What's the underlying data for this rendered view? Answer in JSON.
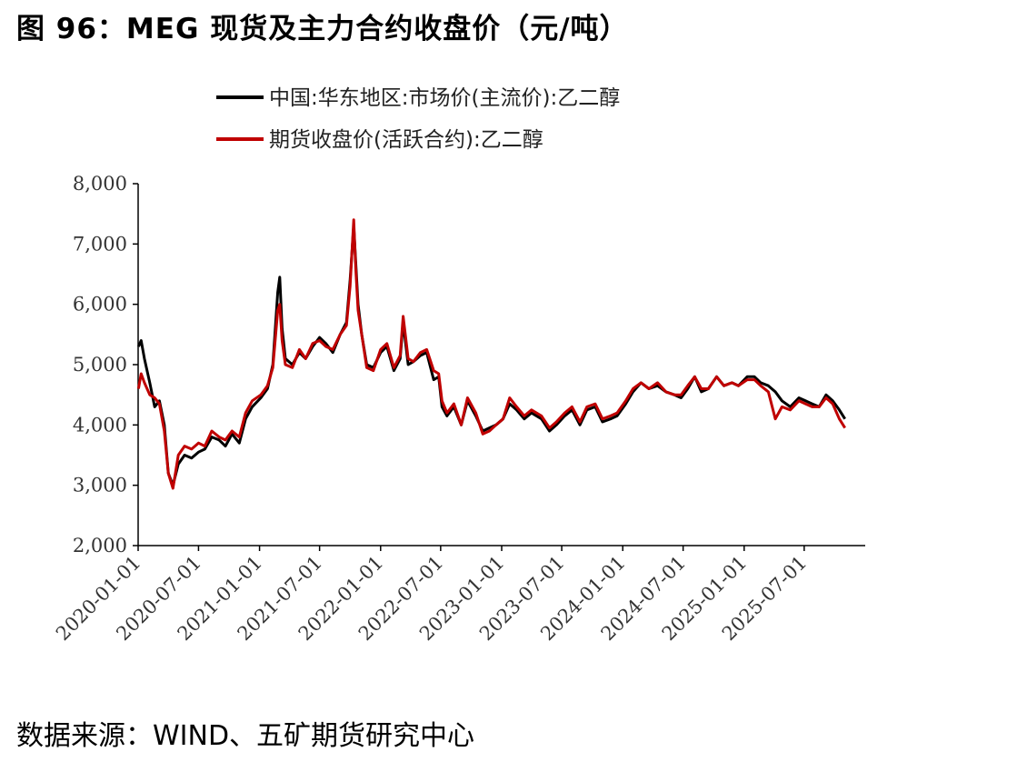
{
  "title": "图 96：MEG 现货及主力合约收盘价（元/吨）",
  "source": "数据来源：WIND、五矿期货研究中心",
  "colors": {
    "spot": "#000000",
    "futures": "#c00000",
    "axis": "#000000"
  },
  "chart_data": {
    "type": "line",
    "title": "图 96：MEG 现货及主力合约收盘价（元/吨）",
    "xlabel": "",
    "ylabel": "",
    "ylim": [
      2000,
      8000
    ],
    "xlim": [
      "2020-01-01",
      "2026-01-01"
    ],
    "yticks": [
      "2,000",
      "3,000",
      "4,000",
      "5,000",
      "6,000",
      "7,000",
      "8,000"
    ],
    "xticks": [
      "2020-01-01",
      "2020-07-01",
      "2021-01-01",
      "2021-07-01",
      "2022-01-01",
      "2022-07-01",
      "2023-01-01",
      "2023-07-01",
      "2024-01-01",
      "2024-07-01",
      "2025-01-01",
      "2025-07-01"
    ],
    "grid": false,
    "legend": "top-center",
    "series": [
      {
        "name": "中国:华东地区:市场价(主流价):乙二醇",
        "color": "#000000",
        "x": [
          "2020-01-02",
          "2020-01-10",
          "2020-01-20",
          "2020-02-05",
          "2020-02-20",
          "2020-03-05",
          "2020-03-20",
          "2020-04-01",
          "2020-04-15",
          "2020-05-01",
          "2020-05-20",
          "2020-06-10",
          "2020-07-01",
          "2020-07-20",
          "2020-08-10",
          "2020-09-01",
          "2020-09-20",
          "2020-10-10",
          "2020-11-01",
          "2020-11-20",
          "2020-12-10",
          "2021-01-05",
          "2021-01-25",
          "2021-02-10",
          "2021-02-25",
          "2021-03-03",
          "2021-03-10",
          "2021-03-20",
          "2021-04-10",
          "2021-05-01",
          "2021-05-20",
          "2021-06-10",
          "2021-07-01",
          "2021-07-20",
          "2021-08-10",
          "2021-09-01",
          "2021-09-20",
          "2021-10-01",
          "2021-10-12",
          "2021-10-18",
          "2021-10-25",
          "2021-11-05",
          "2021-11-20",
          "2021-12-10",
          "2022-01-01",
          "2022-01-20",
          "2022-02-10",
          "2022-03-01",
          "2022-03-10",
          "2022-03-25",
          "2022-04-10",
          "2022-05-01",
          "2022-05-20",
          "2022-06-10",
          "2022-06-25",
          "2022-07-05",
          "2022-07-20",
          "2022-08-10",
          "2022-09-01",
          "2022-09-20",
          "2022-10-15",
          "2022-11-05",
          "2022-11-25",
          "2022-12-15",
          "2023-01-05",
          "2023-01-25",
          "2023-02-15",
          "2023-03-10",
          "2023-04-01",
          "2023-05-01",
          "2023-05-25",
          "2023-06-15",
          "2023-07-10",
          "2023-08-01",
          "2023-08-25",
          "2023-09-15",
          "2023-10-10",
          "2023-11-01",
          "2023-11-25",
          "2023-12-15",
          "2024-01-10",
          "2024-02-01",
          "2024-02-25",
          "2024-03-20",
          "2024-04-15",
          "2024-05-10",
          "2024-06-05",
          "2024-06-25",
          "2024-07-15",
          "2024-08-05",
          "2024-08-25",
          "2024-09-15",
          "2024-10-10",
          "2024-11-01",
          "2024-11-25",
          "2024-12-15",
          "2025-01-10",
          "2025-02-01",
          "2025-02-20",
          "2025-03-15",
          "2025-04-05",
          "2025-04-25",
          "2025-05-20",
          "2025-06-15",
          "2025-07-05",
          "2025-07-25",
          "2025-08-15",
          "2025-09-05",
          "2025-09-25",
          "2025-10-15",
          "2025-11-01"
        ],
        "y": [
          5300,
          5400,
          5100,
          4700,
          4300,
          4400,
          4000,
          3200,
          3000,
          3350,
          3500,
          3450,
          3550,
          3600,
          3800,
          3750,
          3650,
          3850,
          3700,
          4100,
          4300,
          4450,
          4600,
          5000,
          6200,
          6450,
          5600,
          5100,
          5000,
          5200,
          5100,
          5300,
          5450,
          5350,
          5200,
          5500,
          5700,
          6400,
          7300,
          6700,
          6000,
          5500,
          5000,
          4950,
          5200,
          5300,
          4900,
          5100,
          5700,
          5000,
          5050,
          5150,
          5200,
          4750,
          4800,
          4300,
          4150,
          4300,
          4000,
          4400,
          4150,
          3900,
          3950,
          4000,
          4100,
          4350,
          4250,
          4100,
          4200,
          4100,
          3900,
          4000,
          4150,
          4250,
          4000,
          4250,
          4300,
          4050,
          4100,
          4150,
          4350,
          4550,
          4700,
          4600,
          4650,
          4550,
          4500,
          4450,
          4600,
          4800,
          4550,
          4600,
          4800,
          4650,
          4700,
          4650,
          4800,
          4800,
          4700,
          4650,
          4550,
          4400,
          4300,
          4450,
          4400,
          4350,
          4300,
          4500,
          4400,
          4250,
          4100
        ],
        "shown_extremes": {
          "max": 7400,
          "min": 2900
        }
      },
      {
        "name": "期货收盘价(活跃合约):乙二醇",
        "color": "#c00000",
        "x": [
          "2020-01-02",
          "2020-01-10",
          "2020-01-20",
          "2020-02-05",
          "2020-02-20",
          "2020-03-05",
          "2020-03-20",
          "2020-04-01",
          "2020-04-15",
          "2020-05-01",
          "2020-05-20",
          "2020-06-10",
          "2020-07-01",
          "2020-07-20",
          "2020-08-10",
          "2020-09-01",
          "2020-09-20",
          "2020-10-10",
          "2020-11-01",
          "2020-11-20",
          "2020-12-10",
          "2021-01-05",
          "2021-01-25",
          "2021-02-10",
          "2021-02-25",
          "2021-03-03",
          "2021-03-10",
          "2021-03-20",
          "2021-04-10",
          "2021-05-01",
          "2021-05-20",
          "2021-06-10",
          "2021-07-01",
          "2021-07-20",
          "2021-08-10",
          "2021-09-01",
          "2021-09-20",
          "2021-10-01",
          "2021-10-12",
          "2021-10-18",
          "2021-10-25",
          "2021-11-05",
          "2021-11-20",
          "2021-12-10",
          "2022-01-01",
          "2022-01-20",
          "2022-02-10",
          "2022-03-01",
          "2022-03-10",
          "2022-03-25",
          "2022-04-10",
          "2022-05-01",
          "2022-05-20",
          "2022-06-10",
          "2022-06-25",
          "2022-07-05",
          "2022-07-20",
          "2022-08-10",
          "2022-09-01",
          "2022-09-20",
          "2022-10-15",
          "2022-11-05",
          "2022-11-25",
          "2022-12-15",
          "2023-01-05",
          "2023-01-25",
          "2023-02-15",
          "2023-03-10",
          "2023-04-01",
          "2023-05-01",
          "2023-05-25",
          "2023-06-15",
          "2023-07-10",
          "2023-08-01",
          "2023-08-25",
          "2023-09-15",
          "2023-10-10",
          "2023-11-01",
          "2023-11-25",
          "2023-12-15",
          "2024-01-10",
          "2024-02-01",
          "2024-02-25",
          "2024-03-20",
          "2024-04-15",
          "2024-05-10",
          "2024-06-05",
          "2024-06-25",
          "2024-07-15",
          "2024-08-05",
          "2024-08-25",
          "2024-09-15",
          "2024-10-10",
          "2024-11-01",
          "2024-11-25",
          "2024-12-15",
          "2025-01-10",
          "2025-02-01",
          "2025-02-20",
          "2025-03-15",
          "2025-04-05",
          "2025-04-25",
          "2025-05-20",
          "2025-06-15",
          "2025-07-05",
          "2025-07-25",
          "2025-08-15",
          "2025-09-05",
          "2025-09-25",
          "2025-10-15",
          "2025-11-01"
        ],
        "y": [
          4600,
          4850,
          4700,
          4500,
          4450,
          4350,
          3900,
          3200,
          2950,
          3500,
          3650,
          3600,
          3700,
          3650,
          3900,
          3800,
          3750,
          3900,
          3800,
          4200,
          4400,
          4500,
          4650,
          4950,
          5900,
          6000,
          5400,
          5000,
          4950,
          5250,
          5100,
          5350,
          5400,
          5300,
          5250,
          5500,
          5650,
          6300,
          7400,
          6600,
          5900,
          5500,
          4950,
          4900,
          5250,
          5350,
          4950,
          5150,
          5800,
          5100,
          5050,
          5200,
          5250,
          4900,
          4850,
          4400,
          4200,
          4350,
          4000,
          4450,
          4200,
          3850,
          3900,
          4000,
          4100,
          4450,
          4300,
          4150,
          4250,
          4150,
          3950,
          4050,
          4200,
          4300,
          4050,
          4300,
          4350,
          4100,
          4150,
          4200,
          4400,
          4600,
          4700,
          4600,
          4700,
          4550,
          4500,
          4500,
          4650,
          4800,
          4600,
          4600,
          4800,
          4650,
          4700,
          4650,
          4750,
          4750,
          4650,
          4550,
          4100,
          4300,
          4250,
          4400,
          4350,
          4300,
          4300,
          4450,
          4350,
          4100,
          3950
        ],
        "shown_extremes": {
          "max": 7400,
          "min": 2900
        }
      }
    ]
  }
}
